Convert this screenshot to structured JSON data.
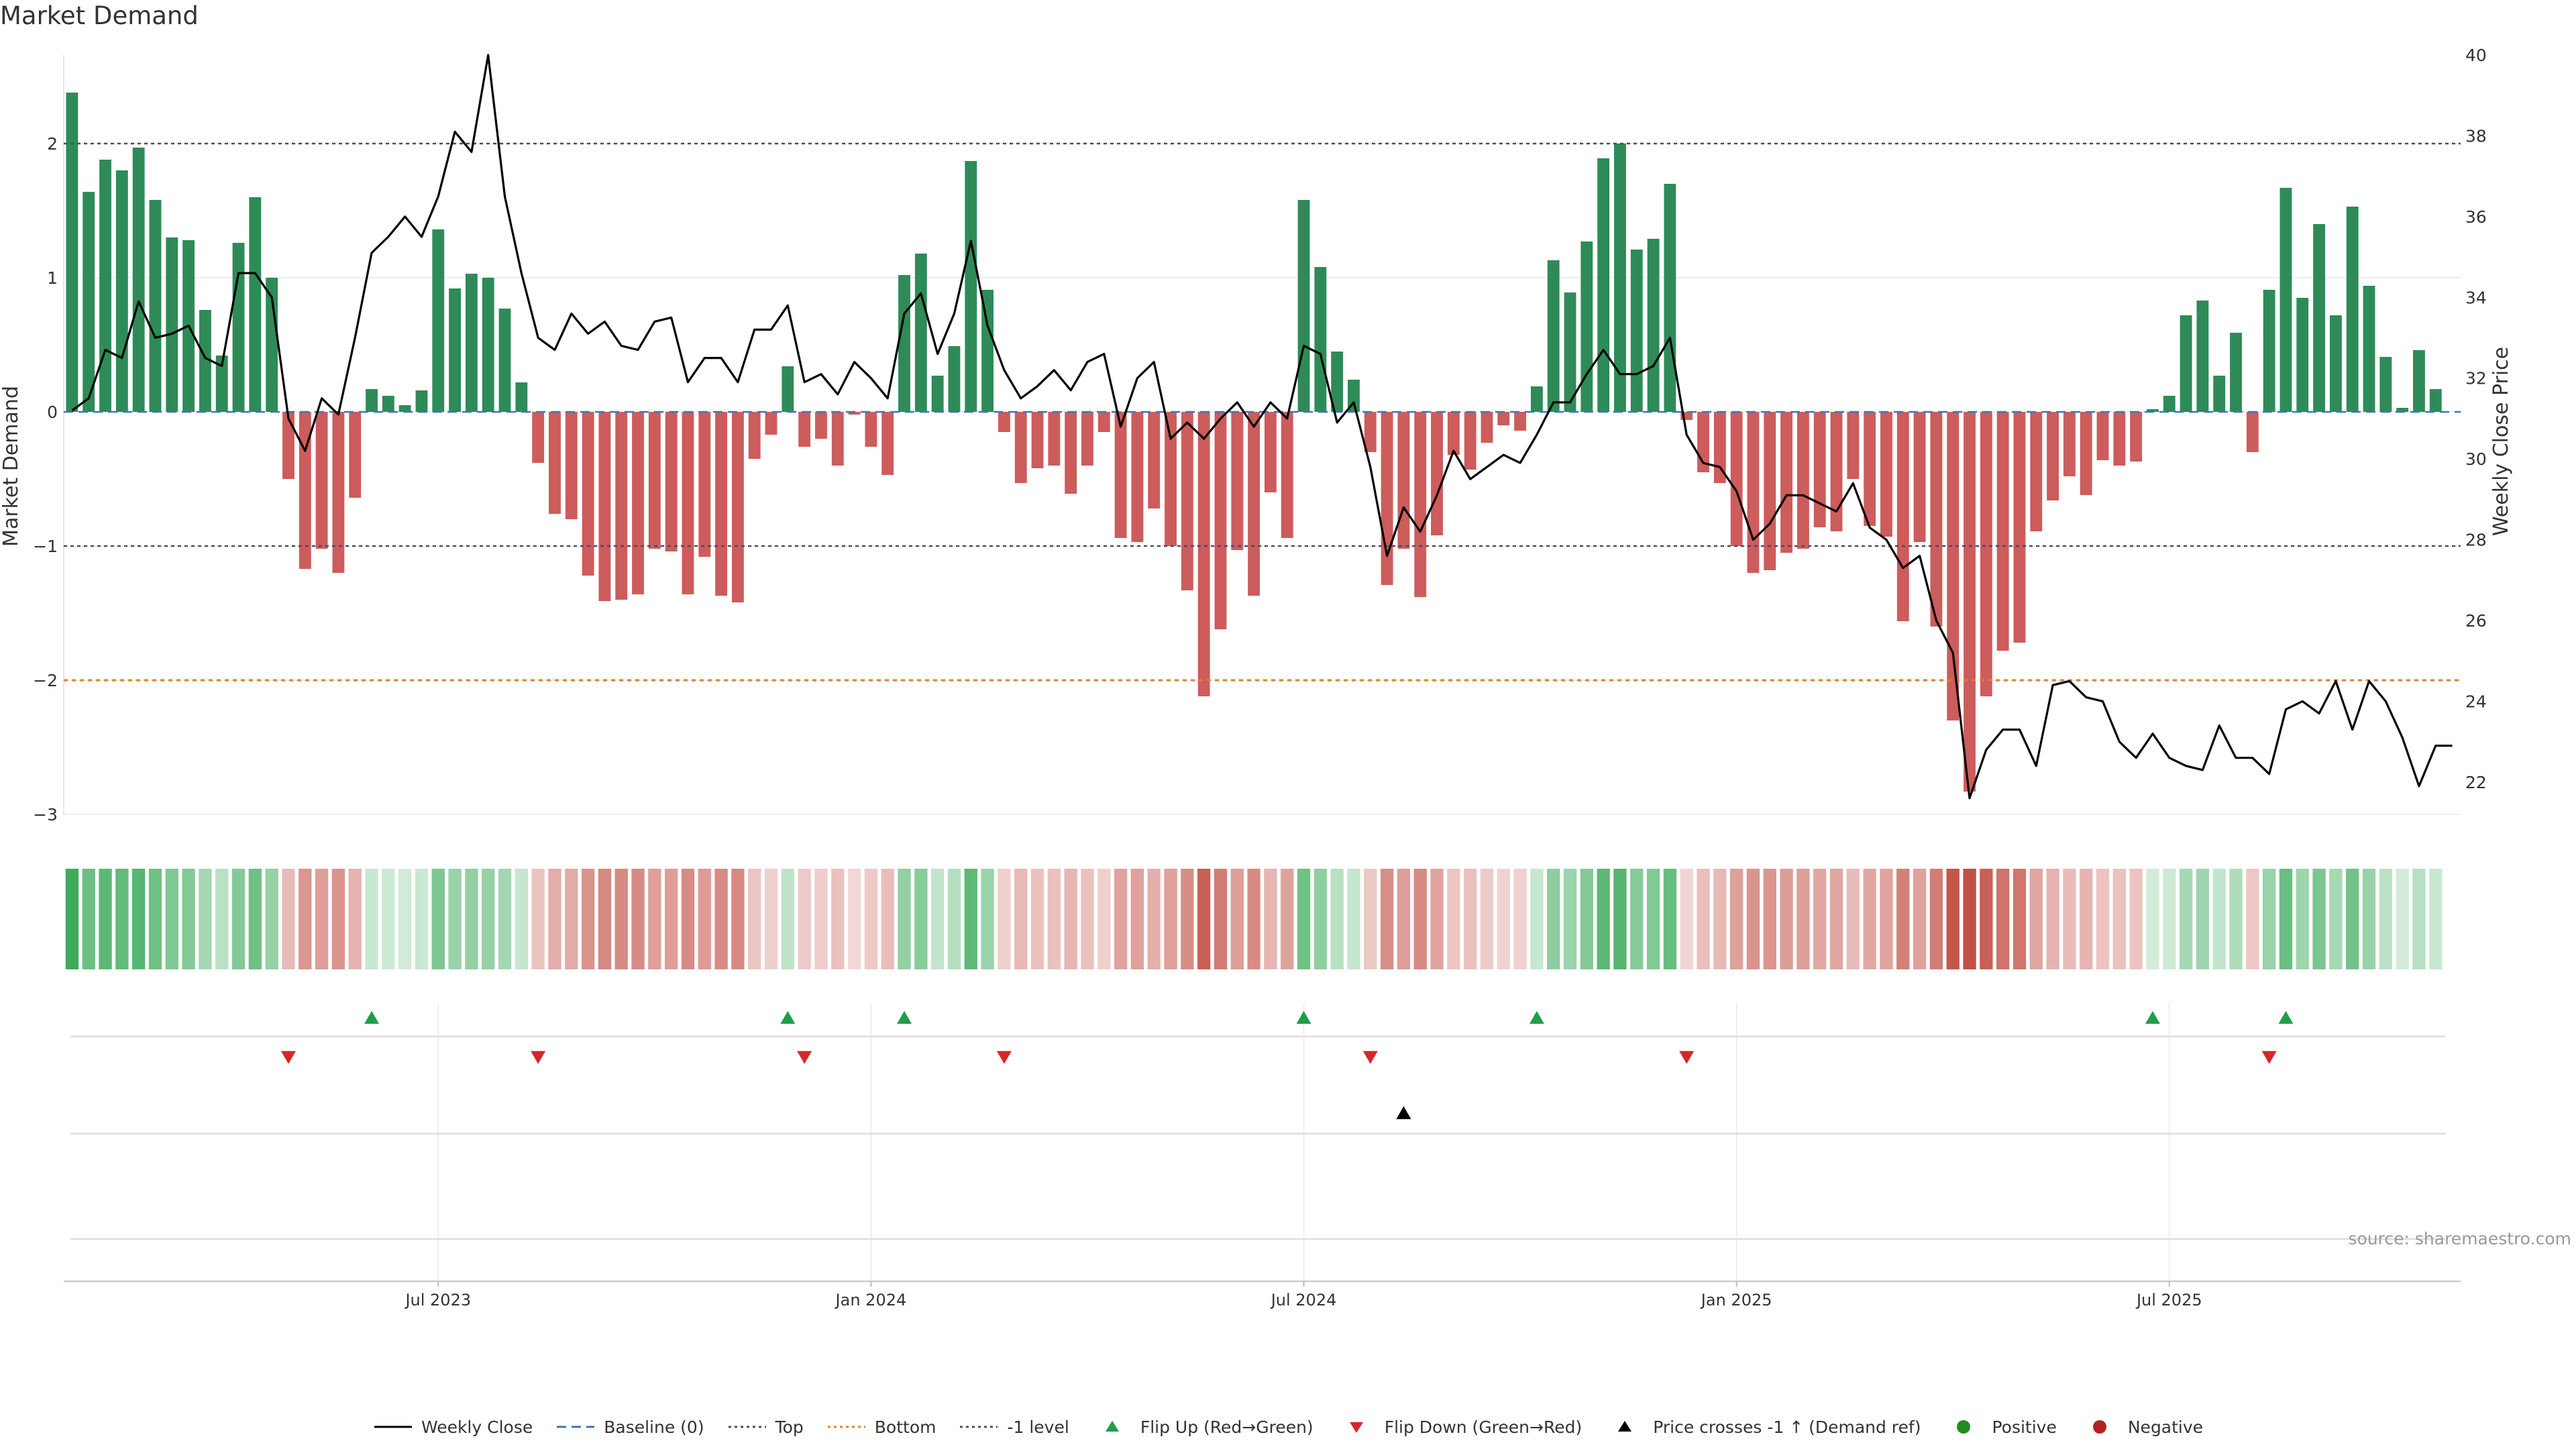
{
  "title": "Market Demand",
  "source": "source: sharemaestro.com",
  "colors": {
    "positive": "#2e8b57",
    "negative": "#cd5c5c",
    "price": "#000000",
    "top_line": "#4a4a6a",
    "bottom_line": "#e67e22",
    "baseline": "#3a77b8",
    "flip_up": "#1f9e4a",
    "flip_down": "#d62728",
    "cross": "#000000",
    "positive_dot": "#228b22",
    "negative_dot": "#b22222"
  },
  "chart_data": {
    "type": "bar",
    "title": "Market Demand",
    "ylabel": "Market Demand",
    "y2label": "Weekly Close Price",
    "ylim": [
      -3,
      2.5
    ],
    "y_ticks": [
      2,
      1,
      0,
      -1,
      -2,
      -3
    ],
    "y_tick_labels": [
      "2",
      "1",
      "0",
      "−1",
      "−2",
      "−3"
    ],
    "y2lim": [
      21.2,
      40
    ],
    "y2_ticks": [
      40,
      38,
      36,
      34,
      32,
      30,
      28,
      26,
      24,
      22
    ],
    "y2_tick_labels": [
      "40",
      "38",
      "36",
      "34",
      "32",
      "30",
      "28",
      "26",
      "24",
      "22"
    ],
    "reference_lines": {
      "top": 2,
      "bottom": -2,
      "minus_one": -1,
      "baseline": 0
    },
    "x_tick_labels": [
      "Jul 2023",
      "Jan 2024",
      "Jul 2024",
      "Jan 2025",
      "Jul 2025"
    ],
    "x_tick_week_index": [
      22,
      48,
      74,
      100,
      126
    ],
    "weeks": 144,
    "demand": [
      2.38,
      1.64,
      1.88,
      1.8,
      1.97,
      1.58,
      1.3,
      1.28,
      0.76,
      0.42,
      1.26,
      1.6,
      1.0,
      -0.5,
      -1.17,
      -1.02,
      -1.2,
      -0.64,
      0.17,
      0.12,
      0.05,
      0.16,
      1.36,
      0.92,
      1.03,
      1.0,
      0.77,
      0.22,
      -0.38,
      -0.76,
      -0.8,
      -1.22,
      -1.41,
      -1.4,
      -1.36,
      -1.02,
      -1.04,
      -1.36,
      -1.08,
      -1.37,
      -1.42,
      -0.35,
      -0.17,
      0.34,
      -0.26,
      -0.2,
      -0.4,
      -0.02,
      -0.26,
      -0.47,
      1.02,
      1.18,
      0.27,
      0.49,
      1.87,
      0.91,
      -0.15,
      -0.53,
      -0.42,
      -0.4,
      -0.61,
      -0.4,
      -0.15,
      -0.94,
      -0.97,
      -0.72,
      -1.0,
      -1.33,
      -2.12,
      -1.62,
      -1.03,
      -1.37,
      -0.6,
      -0.94,
      1.58,
      1.08,
      0.45,
      0.24,
      -0.3,
      -1.29,
      -1.02,
      -1.38,
      -0.92,
      -0.32,
      -0.43,
      -0.23,
      -0.1,
      -0.14,
      0.19,
      1.13,
      0.89,
      1.27,
      1.89,
      2.0,
      1.21,
      1.29,
      1.7,
      -0.06,
      -0.45,
      -0.53,
      -1.0,
      -1.2,
      -1.18,
      -1.05,
      -1.02,
      -0.86,
      -0.89,
      -0.5,
      -0.85,
      -0.93,
      -1.56,
      -0.97,
      -1.6,
      -2.3,
      -2.83,
      -2.12,
      -1.78,
      -1.72,
      -0.89,
      -0.66,
      -0.48,
      -0.62,
      -0.36,
      -0.4,
      -0.37,
      0.02,
      0.12,
      0.72,
      0.83,
      0.27,
      0.59,
      -0.3,
      0.91,
      1.67,
      0.85,
      1.4,
      0.72,
      1.53,
      0.94,
      0.41,
      0.03,
      0.46,
      0.17
    ],
    "weekly_close": [
      31.2,
      31.5,
      32.7,
      32.5,
      33.9,
      33.0,
      33.1,
      33.3,
      32.5,
      32.3,
      34.6,
      34.6,
      34.0,
      31.0,
      30.2,
      31.5,
      31.1,
      33.0,
      35.1,
      35.5,
      36.0,
      35.5,
      36.5,
      38.1,
      37.6,
      40.0,
      36.5,
      34.6,
      33.0,
      32.7,
      33.6,
      33.1,
      33.4,
      32.8,
      32.7,
      33.4,
      33.5,
      31.9,
      32.5,
      32.5,
      31.9,
      33.2,
      33.2,
      33.8,
      31.9,
      32.1,
      31.6,
      32.4,
      32.0,
      31.5,
      33.6,
      34.1,
      32.6,
      33.6,
      35.4,
      33.3,
      32.2,
      31.5,
      31.8,
      32.2,
      31.7,
      32.4,
      32.6,
      30.8,
      32.0,
      32.4,
      30.5,
      30.9,
      30.5,
      31.0,
      31.4,
      30.8,
      31.4,
      31.0,
      32.8,
      32.6,
      30.9,
      31.4,
      29.8,
      27.6,
      28.8,
      28.2,
      29.1,
      30.2,
      29.5,
      29.8,
      30.1,
      29.9,
      30.6,
      31.4,
      31.4,
      32.1,
      32.7,
      32.1,
      32.1,
      32.3,
      33.0,
      30.6,
      29.9,
      29.8,
      29.2,
      28.0,
      28.4,
      29.1,
      29.1,
      28.9,
      28.7,
      29.4,
      28.3,
      28.0,
      27.3,
      27.6,
      26.0,
      25.2,
      21.6,
      22.8,
      23.3,
      23.3,
      22.4,
      24.4,
      24.5,
      24.1,
      24.0,
      23.0,
      22.6,
      23.2,
      22.6,
      22.4,
      22.3,
      23.4,
      22.6,
      22.6,
      22.2,
      23.8,
      24.0,
      23.7,
      24.5,
      23.3,
      24.5,
      24.0,
      23.1,
      21.9,
      22.9,
      22.9
    ],
    "flip_up_weeks": [
      18,
      43,
      50,
      74,
      88,
      125,
      133
    ],
    "flip_down_weeks": [
      13,
      28,
      44,
      56,
      78,
      97,
      132
    ],
    "price_cross_weeks": [
      80
    ]
  },
  "legend": {
    "items": [
      {
        "label": "Weekly Close",
        "kind": "line-solid"
      },
      {
        "label": "Baseline (0)",
        "kind": "line-dashed"
      },
      {
        "label": "Top",
        "kind": "line-dotted-top"
      },
      {
        "label": "Bottom",
        "kind": "line-dotted-bottom"
      },
      {
        "label": "-1 level",
        "kind": "line-dotted-top"
      },
      {
        "label": "Flip Up (Red→Green)",
        "kind": "tri-up"
      },
      {
        "label": "Flip Down (Green→Red)",
        "kind": "tri-down"
      },
      {
        "label": "Price crosses -1 ↑ (Demand ref)",
        "kind": "tri-cross"
      },
      {
        "label": "Positive",
        "kind": "dot-pos"
      },
      {
        "label": "Negative",
        "kind": "dot-neg"
      }
    ]
  }
}
